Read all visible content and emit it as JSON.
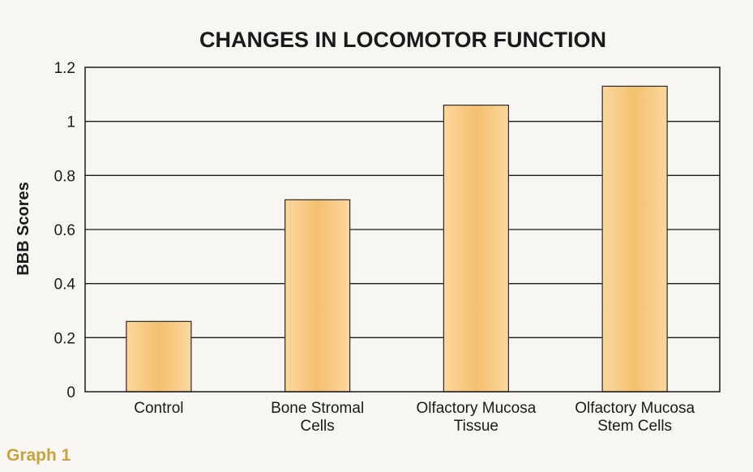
{
  "figure": {
    "caption": "Graph 1"
  },
  "colors": {
    "bar_fill_light": "#fbd79c",
    "bar_fill_dark": "#f5c070",
    "caption": "#c8a23c",
    "background": "#f7f6f2"
  },
  "chart_data": {
    "type": "bar",
    "title": "CHANGES IN LOCOMOTOR FUNCTION",
    "xlabel": "",
    "ylabel": "BBB Scores",
    "categories": [
      [
        "Control"
      ],
      [
        "Bone Stromal",
        "Cells"
      ],
      [
        "Olfactory Mucosa",
        "Tissue"
      ],
      [
        "Olfactory Mucosa",
        "Stem Cells"
      ]
    ],
    "values": [
      0.26,
      0.71,
      1.06,
      1.13
    ],
    "ylim": [
      0,
      1.2
    ],
    "yticks": [
      "0",
      "0.2",
      "0.4",
      "0.6",
      "0.8",
      "1",
      "1.2"
    ],
    "ytick_values": [
      0,
      0.2,
      0.4,
      0.6,
      0.8,
      1,
      1.2
    ],
    "grid": true,
    "legend": "none"
  }
}
